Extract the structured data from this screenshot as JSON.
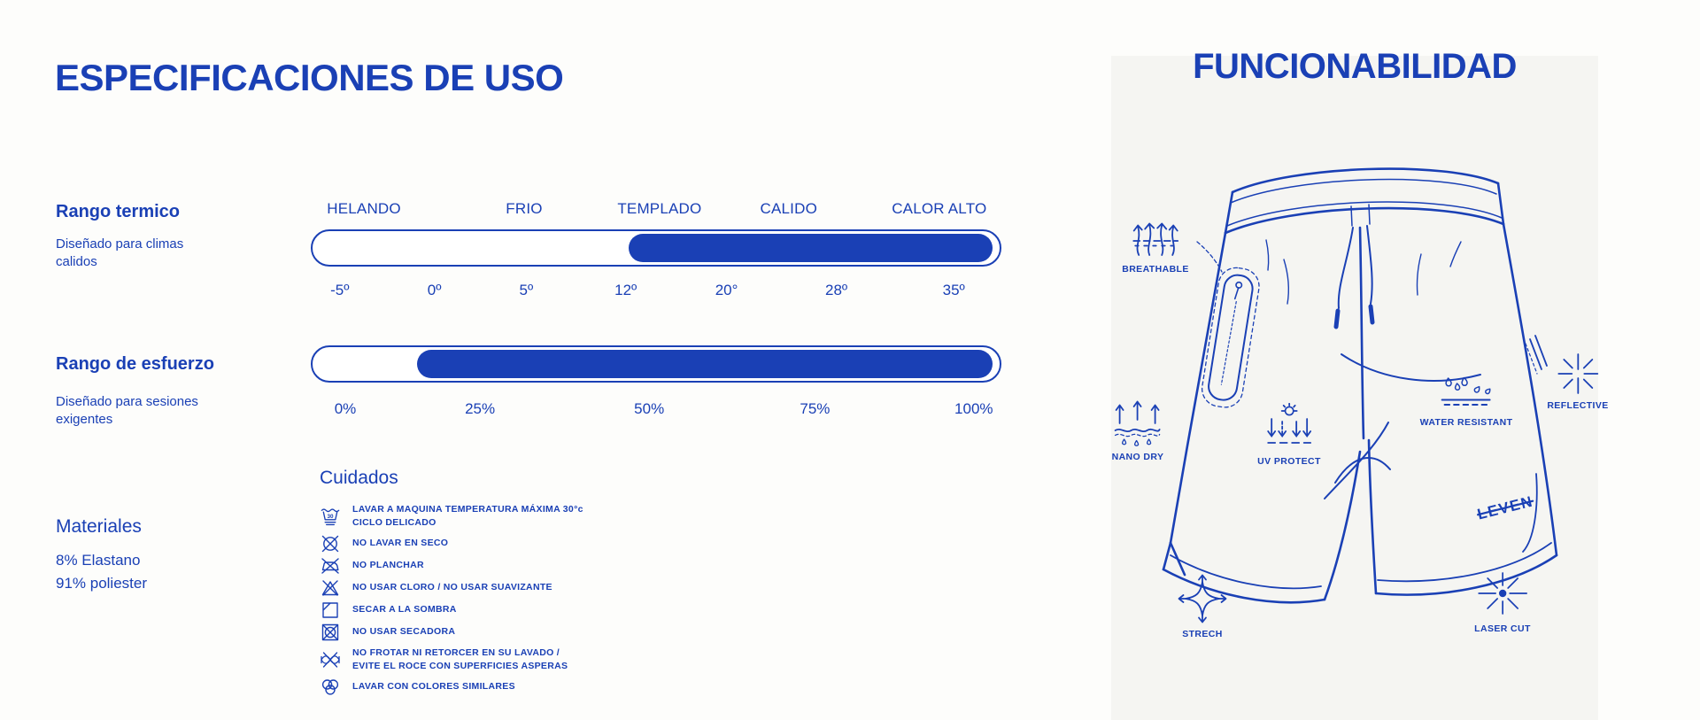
{
  "colors": {
    "primary": "#1a40b5",
    "card_bg": "#f5f5f2",
    "page_bg": "#fdfdfb"
  },
  "left": {
    "title": "ESPECIFICACIONES DE USO",
    "thermal": {
      "heading": "Rango termico",
      "subheading": "Diseñado para climas calidos",
      "labels": [
        "HELANDO",
        "FRIO",
        "TEMPLADO",
        "CALIDO",
        "CALOR ALTO"
      ],
      "ticks": [
        "-5º",
        "0º",
        "5º",
        "12º",
        "20°",
        "28º",
        "35º"
      ],
      "fill_start_pct": 46,
      "fill_end_pct": 99
    },
    "effort": {
      "heading": "Rango de esfuerzo",
      "subheading": "Diseñado para sesiones exigentes",
      "ticks": [
        "0%",
        "25%",
        "50%",
        "75%",
        "100%"
      ],
      "fill_start_pct": 15.2,
      "fill_end_pct": 99
    },
    "materials": {
      "heading": "Materiales",
      "items": [
        "8% Elastano",
        "91% poliester"
      ]
    },
    "care": {
      "heading": "Cuidados",
      "items": [
        {
          "icon": "machine-wash-30-icon",
          "text": "LAVAR A MAQUINA TEMPERATURA MÁXIMA 30°c\nCICLO DELICADO"
        },
        {
          "icon": "no-dry-clean-icon",
          "text": "NO LAVAR EN SECO"
        },
        {
          "icon": "no-iron-icon",
          "text": "NO PLANCHAR"
        },
        {
          "icon": "no-bleach-icon",
          "text": "NO USAR CLORO / NO USAR SUAVIZANTE"
        },
        {
          "icon": "dry-in-shade-icon",
          "text": "SECAR A LA SOMBRA"
        },
        {
          "icon": "no-tumble-dry-icon",
          "text": "NO USAR SECADORA"
        },
        {
          "icon": "no-wring-icon",
          "text": "NO FROTAR NI RETORCER EN SU LAVADO /\nEVITE EL ROCE CON SUPERFICIES ASPERAS"
        },
        {
          "icon": "wash-similar-colors-icon",
          "text": "LAVAR CON COLORES SIMILARES"
        }
      ]
    }
  },
  "right": {
    "title": "FUNCIONABILIDAD",
    "brand": "LEVEN",
    "features": [
      {
        "label": "BREATHABLE"
      },
      {
        "label": "NANO DRY"
      },
      {
        "label": "UV PROTECT"
      },
      {
        "label": "WATER RESISTANT"
      },
      {
        "label": "REFLECTIVE"
      },
      {
        "label": "STRECH"
      },
      {
        "label": "LASER CUT"
      }
    ]
  }
}
